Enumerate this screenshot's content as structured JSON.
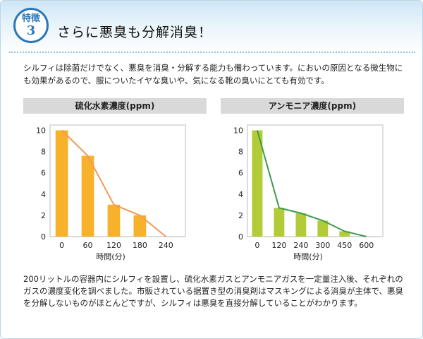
{
  "badge": {
    "label": "特徴",
    "number": "3"
  },
  "title": "さらに悪臭も分解消臭！",
  "intro": "シルフィは除菌だけでなく、悪臭を消臭・分解する能力も備わっています。においの原因となる微生物にも効果があるので、服についたイヤな臭いや、気になる靴の臭いにとても有効です。",
  "footer": "200リットルの容器内にシルフィを設置し、硫化水素ガスとアンモニアガスを一定量注入後、それぞれのガスの濃度変化を調べました。市販されている据置き型の消臭剤はマスキングによる消臭が主体で、悪臭を分解しないものがほとんどですが、シルフィは悪臭を直接分解していることがわかります。",
  "chart_data": [
    {
      "type": "bar",
      "title": "硫化水素濃度(ppm)",
      "xlabel": "時間(分)",
      "ylabel": "",
      "categories": [
        "0",
        "60",
        "120",
        "180",
        "240"
      ],
      "values": [
        10,
        7.6,
        3.0,
        2.0,
        0
      ],
      "line": [
        10,
        7.6,
        3.0,
        2.0,
        0
      ],
      "yticks": [
        0,
        2,
        4,
        6,
        8,
        10
      ],
      "ylim": [
        0,
        10.5
      ],
      "bar_color": "#f7b12b",
      "line_color": "#f39a5a"
    },
    {
      "type": "bar",
      "title": "アンモニア濃度(ppm)",
      "xlabel": "時間(分)",
      "ylabel": "",
      "categories": [
        "0",
        "120",
        "240",
        "300",
        "450",
        "600"
      ],
      "values": [
        10,
        2.7,
        2.2,
        1.5,
        0.5,
        0
      ],
      "line": [
        10,
        2.7,
        2.2,
        1.5,
        0.5,
        0
      ],
      "yticks": [
        0,
        2,
        4,
        6,
        8,
        10
      ],
      "ylim": [
        0,
        10.5
      ],
      "bar_color": "#b1cc37",
      "line_color": "#3f9a4e"
    }
  ]
}
